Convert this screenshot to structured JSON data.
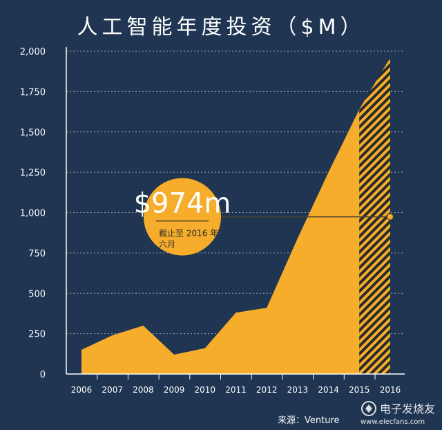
{
  "title": "人工智能年度投资（$M）",
  "source": "来源：Venture",
  "watermark": {
    "name": "电子发烧友",
    "url": "www.elecfans.com"
  },
  "callout": {
    "value": "$974m",
    "note_line1": "截止至 2016 年",
    "note_line2": "六月"
  },
  "colors": {
    "background": "#1f3552",
    "area": "#f5ad2b",
    "grid": "#c9d2de",
    "text": "#ffffff"
  },
  "chart_data": {
    "type": "area",
    "title": "人工智能年度投资（$M）",
    "xlabel": "",
    "ylabel": "",
    "ylim": [
      0,
      2000
    ],
    "yticks": [
      "0",
      "250",
      "500",
      "750",
      "1,000",
      "1,250",
      "1,500",
      "1,750",
      "2,000"
    ],
    "categories": [
      "2006",
      "2007",
      "2008",
      "2009",
      "2010",
      "2011",
      "2012",
      "2013",
      "2014",
      "2015",
      "2016"
    ],
    "values": [
      150,
      240,
      300,
      120,
      160,
      380,
      410,
      840,
      1250,
      1640,
      1960
    ],
    "grid": true,
    "legend": "none",
    "annotation": {
      "label": "$974m",
      "value": 974,
      "at": "2016",
      "note": "截止至 2016 年六月"
    },
    "projected_segment": "2015-2016 (hatched)"
  }
}
